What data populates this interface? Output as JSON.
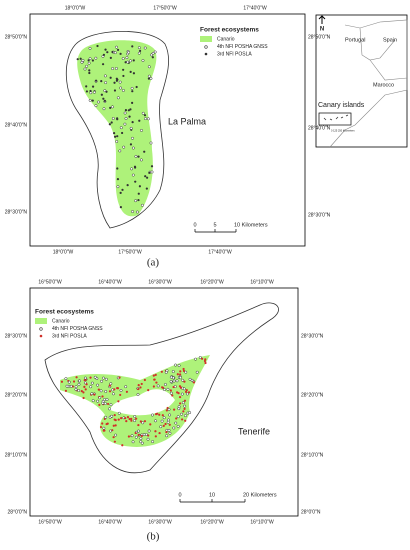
{
  "panel_a": {
    "label": "(a)",
    "top_ticks": [
      "18°0'0\"W",
      "17°50'0\"W",
      "17°40'0\"W"
    ],
    "bottom_ticks": [
      "18°0'0\"W",
      "17°50'0\"W",
      "17°40'0\"W"
    ],
    "left_ticks": [
      "28°50'0\"N",
      "28°40'0\"N",
      "28°30'0\"N"
    ],
    "right_ticks": [
      "28°50'0\"N",
      "28°40'0\"N",
      "28°30'0\"N"
    ],
    "legend": {
      "title": "Forest ecosystems",
      "items": [
        "Canario",
        "4th NFI POSHA GNSS",
        "3rd NFI POSLA"
      ]
    },
    "island": "La Palma",
    "scale": [
      "0",
      "5",
      "10 Kilometers"
    ]
  },
  "inset": {
    "north": "N",
    "labels": [
      "Portugal",
      "Spain",
      "Canary islands",
      "Marocco"
    ],
    "scale": "0  125  250 Kilometers"
  },
  "panel_b": {
    "label": "(b)",
    "top_ticks": [
      "16°50'0\"W",
      "16°40'0\"W",
      "16°30'0\"W",
      "16°20'0\"W",
      "16°10'0\"W"
    ],
    "bottom_ticks": [
      "16°50'0\"W",
      "16°40'0\"W",
      "16°30'0\"W",
      "16°20'0\"W",
      "16°10'0\"W"
    ],
    "left_ticks": [
      "28°30'0\"N",
      "28°20'0\"N",
      "28°10'0\"N",
      "28°0'0\"N"
    ],
    "right_ticks": [
      "28°30'0\"N",
      "28°20'0\"N",
      "28°10'0\"N",
      "28°0'0\"N"
    ],
    "legend": {
      "title": "Forest ecosystems",
      "items": [
        "Canario",
        "4th NFI POSHA GNSS",
        "3rd NFI POSLA"
      ]
    },
    "island": "Tenerife",
    "scale": [
      "0",
      "10",
      "20 Kilometers"
    ]
  }
}
